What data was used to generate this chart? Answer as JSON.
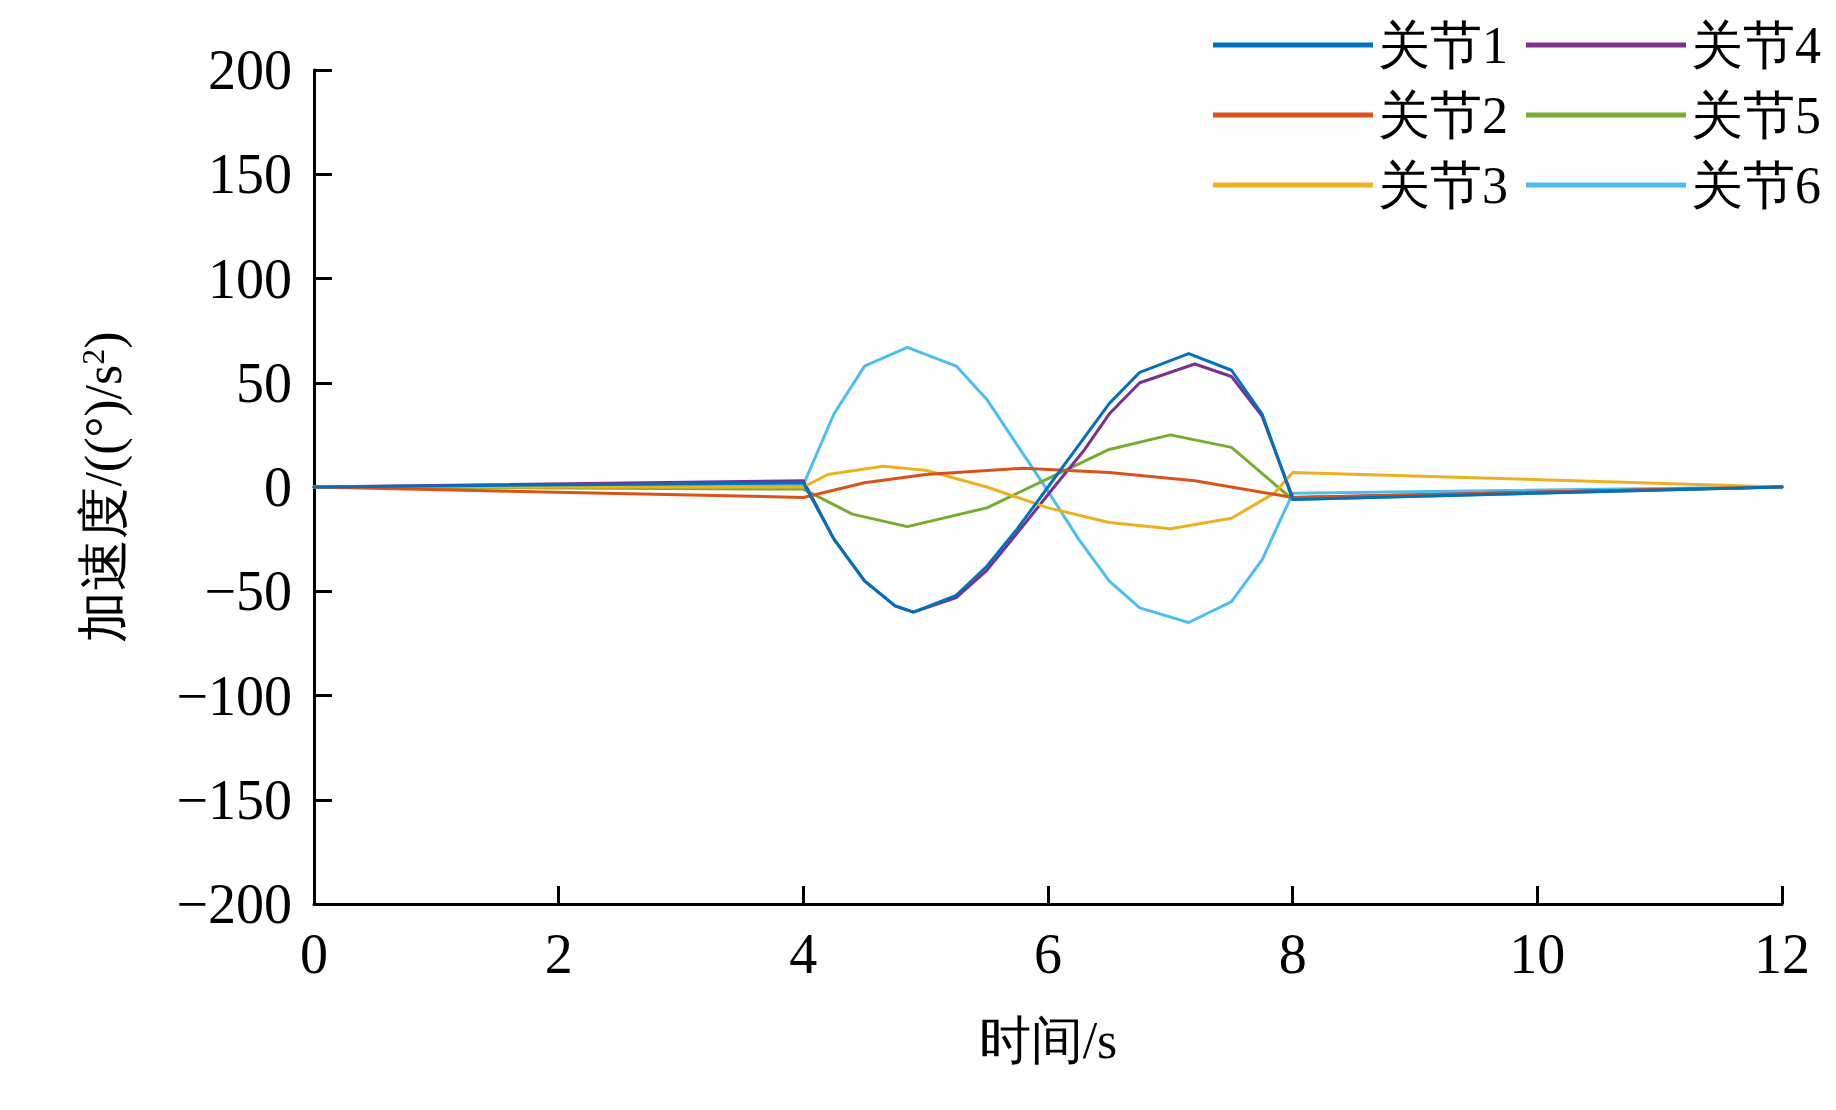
{
  "chart_data": {
    "type": "line",
    "xlabel": "时间/s",
    "ylabel": "加速度/((°)/s$^{2}$)",
    "xlim": [
      0,
      12
    ],
    "xticks": [
      0,
      2,
      4,
      6,
      8,
      10,
      12
    ],
    "ylim": [
      -200,
      200
    ],
    "yticks": [
      -200,
      -150,
      -100,
      -50,
      0,
      50,
      100,
      150,
      200
    ],
    "grid": false,
    "legend": "top right",
    "marker": "none",
    "line_style": "solid",
    "series": [
      {
        "name": "关节1",
        "color": "#0072bd",
        "x": [
          0,
          4,
          4.25,
          4.5,
          4.75,
          4.9,
          5.25,
          5.5,
          5.75,
          6,
          6.25,
          6.5,
          6.75,
          7.15,
          7.5,
          7.75,
          8,
          12
        ],
        "values": [
          0,
          2,
          -25,
          -45,
          -57,
          -60,
          -52,
          -38,
          -20,
          0,
          20,
          40,
          55,
          64,
          56,
          35,
          -6,
          0
        ]
      },
      {
        "name": "关节2",
        "color": "#d95319",
        "x": [
          0,
          4,
          4.5,
          5,
          5.8,
          6.5,
          7.2,
          8,
          12
        ],
        "values": [
          0,
          -5,
          2,
          6,
          9,
          7,
          3,
          -5,
          0
        ]
      },
      {
        "name": "关节3",
        "color": "#edb120",
        "x": [
          0,
          4,
          4.2,
          4.65,
          5,
          5.5,
          6,
          6.5,
          7,
          7.5,
          7.85,
          8,
          12
        ],
        "values": [
          0,
          0,
          6,
          10,
          8,
          0,
          -10,
          -17,
          -20,
          -15,
          -3,
          7,
          0
        ]
      },
      {
        "name": "关节4",
        "color": "#7e2f8e",
        "x": [
          0,
          4,
          4.25,
          4.5,
          4.75,
          4.9,
          5.25,
          5.5,
          5.75,
          6.05,
          6.3,
          6.5,
          6.75,
          7.2,
          7.5,
          7.75,
          8,
          12
        ],
        "values": [
          0,
          3,
          -25,
          -45,
          -57,
          -60,
          -53,
          -40,
          -22,
          0,
          18,
          35,
          50,
          59,
          53,
          34,
          -5,
          0
        ]
      },
      {
        "name": "关节5",
        "color": "#77ac30",
        "x": [
          0,
          4,
          4.4,
          4.85,
          5.5,
          6,
          6.5,
          7,
          7.5,
          8,
          12
        ],
        "values": [
          0,
          -1,
          -13,
          -19,
          -10,
          4,
          18,
          25,
          19,
          -6,
          0
        ]
      },
      {
        "name": "关节6",
        "color": "#4dbeee",
        "x": [
          0,
          4,
          4.25,
          4.5,
          4.85,
          5.25,
          5.5,
          5.75,
          6,
          6.25,
          6.5,
          6.75,
          7.15,
          7.5,
          7.75,
          8,
          12
        ],
        "values": [
          0,
          1,
          35,
          58,
          67,
          58,
          42,
          20,
          -2,
          -25,
          -45,
          -58,
          -65,
          -55,
          -35,
          -3,
          0
        ]
      }
    ]
  }
}
